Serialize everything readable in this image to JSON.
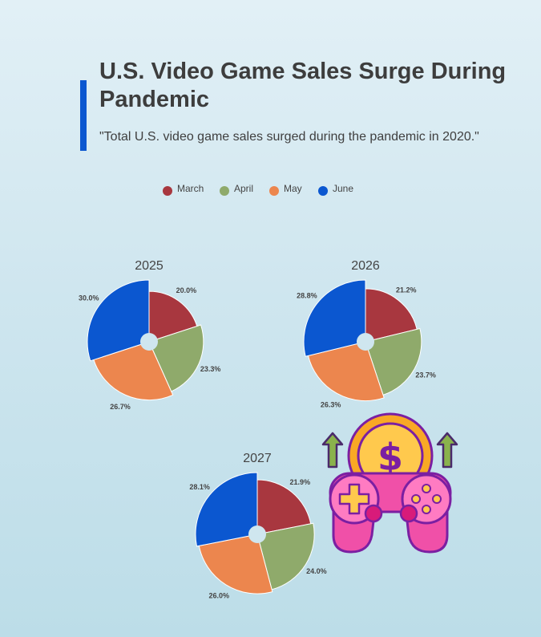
{
  "title": "U.S. Video Game Sales Surge During Pandemic",
  "subtitle": "\"Total U.S. video game sales surged during the pandemic in 2020.\"",
  "colors": {
    "accent": "#0b57d0",
    "March": "#a8373f",
    "April": "#8faa6b",
    "May": "#ec864e",
    "June": "#0b57d0"
  },
  "legend": [
    "March",
    "April",
    "May",
    "June"
  ],
  "chart_data": [
    {
      "type": "pie",
      "title": "2025",
      "categories": [
        "March",
        "April",
        "May",
        "June"
      ],
      "values": [
        20.0,
        23.3,
        26.7,
        30.0
      ],
      "labels": [
        "20.0%",
        "23.3%",
        "26.7%",
        "30.0%"
      ],
      "legend_position": "top"
    },
    {
      "type": "pie",
      "title": "2026",
      "categories": [
        "March",
        "April",
        "May",
        "June"
      ],
      "values": [
        21.2,
        23.7,
        26.3,
        28.8
      ],
      "labels": [
        "21.2%",
        "23.7%",
        "26.3%",
        "28.8%"
      ],
      "legend_position": "top"
    },
    {
      "type": "pie",
      "title": "2027",
      "categories": [
        "March",
        "April",
        "May",
        "June"
      ],
      "values": [
        21.9,
        24.0,
        26.0,
        28.1
      ],
      "labels": [
        "21.9%",
        "24.0%",
        "26.0%",
        "28.1%"
      ],
      "legend_position": "top"
    }
  ],
  "illustration": {
    "icon": "gamepad-dollar-icon"
  }
}
